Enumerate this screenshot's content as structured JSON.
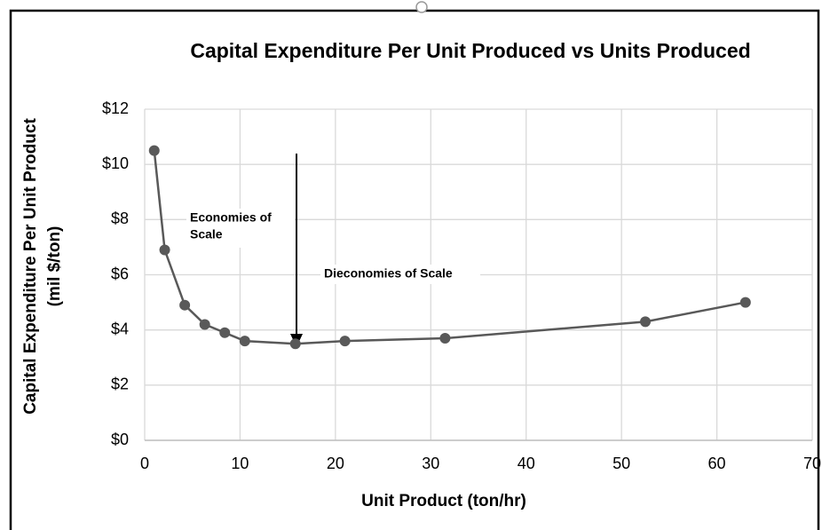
{
  "chart_data": {
    "type": "line",
    "title": "Capital Expenditure Per Unit Produced vs Units Produced",
    "xlabel": "Unit Product (ton/hr)",
    "ylabel": [
      "Capital Expenditure Per Unit Product",
      "(mil $/ton)"
    ],
    "x": [
      1,
      2.1,
      4.2,
      6.3,
      8.4,
      10.5,
      15.8,
      21,
      31.5,
      52.5,
      63
    ],
    "values": [
      10.5,
      6.9,
      4.9,
      4.2,
      3.9,
      3.6,
      3.5,
      3.6,
      3.7,
      4.3,
      5.0
    ],
    "color": "#595959",
    "xlim": [
      0,
      70
    ],
    "xticks": [
      0,
      10,
      20,
      30,
      40,
      50,
      60,
      70
    ],
    "ylim": [
      0,
      12
    ],
    "yticks": [
      {
        "value": 0,
        "label": "$0"
      },
      {
        "value": 2,
        "label": "$2"
      },
      {
        "value": 4,
        "label": "$4"
      },
      {
        "value": 6,
        "label": "$6"
      },
      {
        "value": 8,
        "label": "$8"
      },
      {
        "value": 10,
        "label": "$10"
      },
      {
        "value": 12,
        "label": "$12"
      }
    ],
    "grid": true,
    "annotations": [
      {
        "lines": [
          "Economies of",
          "Scale"
        ]
      },
      {
        "lines": [
          "Dieconomies of Scale"
        ]
      }
    ]
  }
}
